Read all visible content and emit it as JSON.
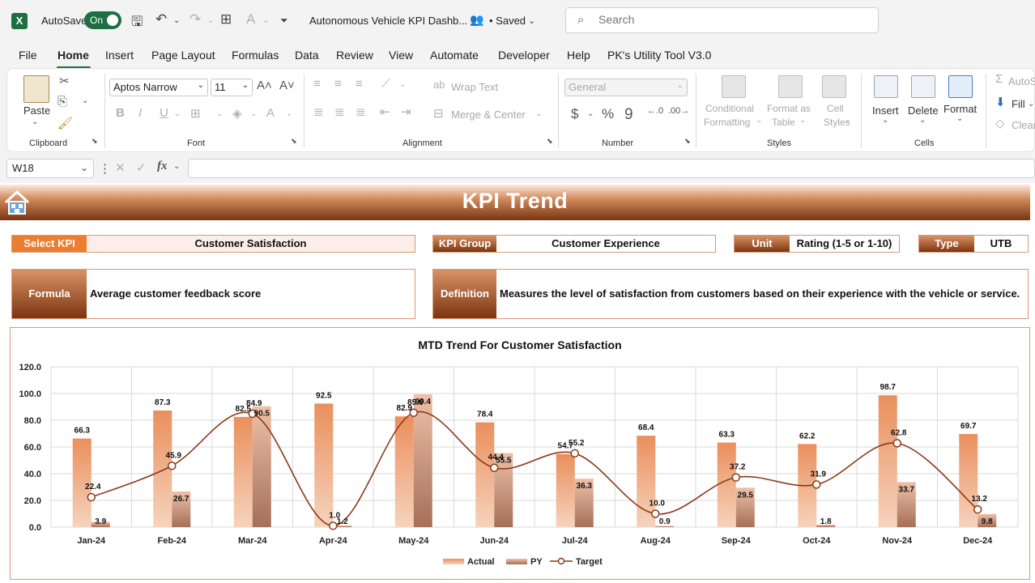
{
  "titlebar": {
    "autosave_label": "AutoSave",
    "autosave_state": "On",
    "doc_title": "Autonomous Vehicle KPI Dashb...",
    "saved": "• Saved",
    "search_placeholder": "Search"
  },
  "menu": [
    "File",
    "Home",
    "Insert",
    "Page Layout",
    "Formulas",
    "Data",
    "Review",
    "View",
    "Automate",
    "Developer",
    "Help",
    "PK's Utility Tool V3.0"
  ],
  "ribbon": {
    "clipboard": {
      "paste": "Paste",
      "label": "Clipboard"
    },
    "font": {
      "name": "Aptos Narrow",
      "size": "11",
      "label": "Font"
    },
    "alignment": {
      "wrap": "Wrap Text",
      "merge": "Merge & Center",
      "label": "Alignment"
    },
    "number": {
      "format": "General",
      "label": "Number"
    },
    "styles": {
      "conditional_1": "Conditional",
      "conditional_2": "Formatting",
      "format_table_1": "Format as",
      "format_table_2": "Table",
      "cell_styles_1": "Cell",
      "cell_styles_2": "Styles",
      "label": "Styles"
    },
    "cells": {
      "insert": "Insert",
      "delete": "Delete",
      "format": "Format",
      "label": "Cells"
    },
    "editing": {
      "autosum": "AutoS",
      "fill": "Fill",
      "clear": "Clear"
    }
  },
  "formula_bar": {
    "cell_ref": "W18",
    "fx": "fx",
    "content": ""
  },
  "dashboard": {
    "title": "KPI Trend",
    "select_kpi_label": "Select KPI",
    "select_kpi_value": "Customer Satisfaction",
    "kpi_group_label": "KPI Group",
    "kpi_group_value": "Customer Experience",
    "unit_label": "Unit",
    "unit_value": "Rating (1-5 or 1-10)",
    "type_label": "Type",
    "type_value": "UTB",
    "formula_label": "Formula",
    "formula_value": "Average customer feedback score",
    "definition_label": "Definition",
    "definition_value": "Measures the level of satisfaction from customers based on their experience with the vehicle or service."
  },
  "chart_data": {
    "type": "bar",
    "title": "MTD Trend For Customer Satisfaction",
    "categories": [
      "Jan-24",
      "Feb-24",
      "Mar-24",
      "Apr-24",
      "May-24",
      "Jun-24",
      "Jul-24",
      "Aug-24",
      "Sep-24",
      "Oct-24",
      "Nov-24",
      "Dec-24"
    ],
    "series": [
      {
        "name": "Actual",
        "kind": "bar",
        "values": [
          66.3,
          87.3,
          82.5,
          92.5,
          82.9,
          78.4,
          54.7,
          68.4,
          63.3,
          62.2,
          98.7,
          69.7
        ]
      },
      {
        "name": "PY",
        "kind": "bar",
        "values": [
          3.9,
          26.7,
          90.5,
          1.2,
          99.4,
          55.5,
          36.3,
          0.9,
          29.5,
          1.8,
          33.7,
          9.8
        ]
      },
      {
        "name": "Target",
        "kind": "line",
        "values": [
          22.4,
          45.9,
          84.9,
          1.0,
          85.6,
          44.4,
          55.2,
          10.0,
          37.2,
          31.9,
          62.8,
          13.2
        ]
      }
    ],
    "yticks": [
      "0.0",
      "20.0",
      "40.0",
      "60.0",
      "80.0",
      "100.0",
      "120.0"
    ],
    "ylim": [
      0,
      120
    ],
    "grid": true,
    "legend": "bottom",
    "colors": {
      "actual": "#e08a5a",
      "py": "#e6b9a3",
      "target": "#8a3a1a"
    }
  }
}
